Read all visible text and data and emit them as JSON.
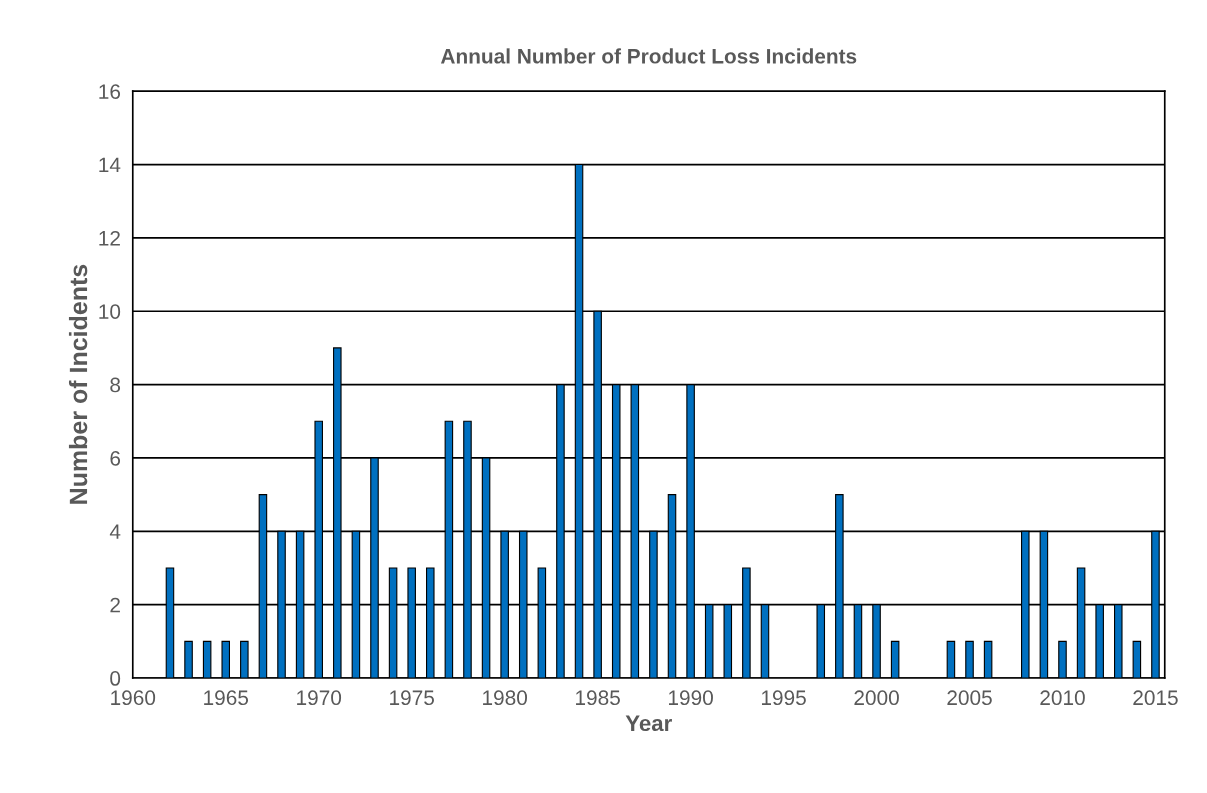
{
  "chart_data": {
    "type": "bar",
    "title": "Annual Number of Product Loss Incidents",
    "xlabel": "Year",
    "ylabel": "Number of Incidents",
    "x": [
      1962,
      1963,
      1964,
      1965,
      1966,
      1967,
      1968,
      1969,
      1970,
      1971,
      1972,
      1973,
      1974,
      1975,
      1976,
      1977,
      1978,
      1979,
      1980,
      1981,
      1982,
      1983,
      1984,
      1985,
      1986,
      1987,
      1988,
      1989,
      1990,
      1991,
      1992,
      1993,
      1994,
      1995,
      1996,
      1997,
      1998,
      1999,
      2000,
      2001,
      2002,
      2003,
      2004,
      2005,
      2006,
      2007,
      2008,
      2009,
      2010,
      2011,
      2012,
      2013,
      2014,
      2015
    ],
    "values": [
      3,
      1,
      1,
      1,
      1,
      5,
      4,
      4,
      7,
      9,
      4,
      6,
      3,
      3,
      3,
      7,
      7,
      6,
      4,
      4,
      3,
      8,
      14,
      10,
      8,
      8,
      4,
      5,
      8,
      2,
      2,
      3,
      2,
      0,
      0,
      2,
      5,
      2,
      2,
      1,
      0,
      0,
      1,
      1,
      1,
      0,
      4,
      4,
      1,
      3,
      2,
      2,
      1,
      4
    ],
    "color": "#0070c0",
    "xlim": [
      1960,
      2015.5
    ],
    "xticks": [
      1960,
      1965,
      1970,
      1975,
      1980,
      1985,
      1990,
      1995,
      2000,
      2005,
      2010,
      2015
    ],
    "ylim": [
      0,
      16
    ],
    "yticks": [
      0,
      2,
      4,
      6,
      8,
      10,
      12,
      14,
      16
    ],
    "grid": "y",
    "legend": false
  }
}
